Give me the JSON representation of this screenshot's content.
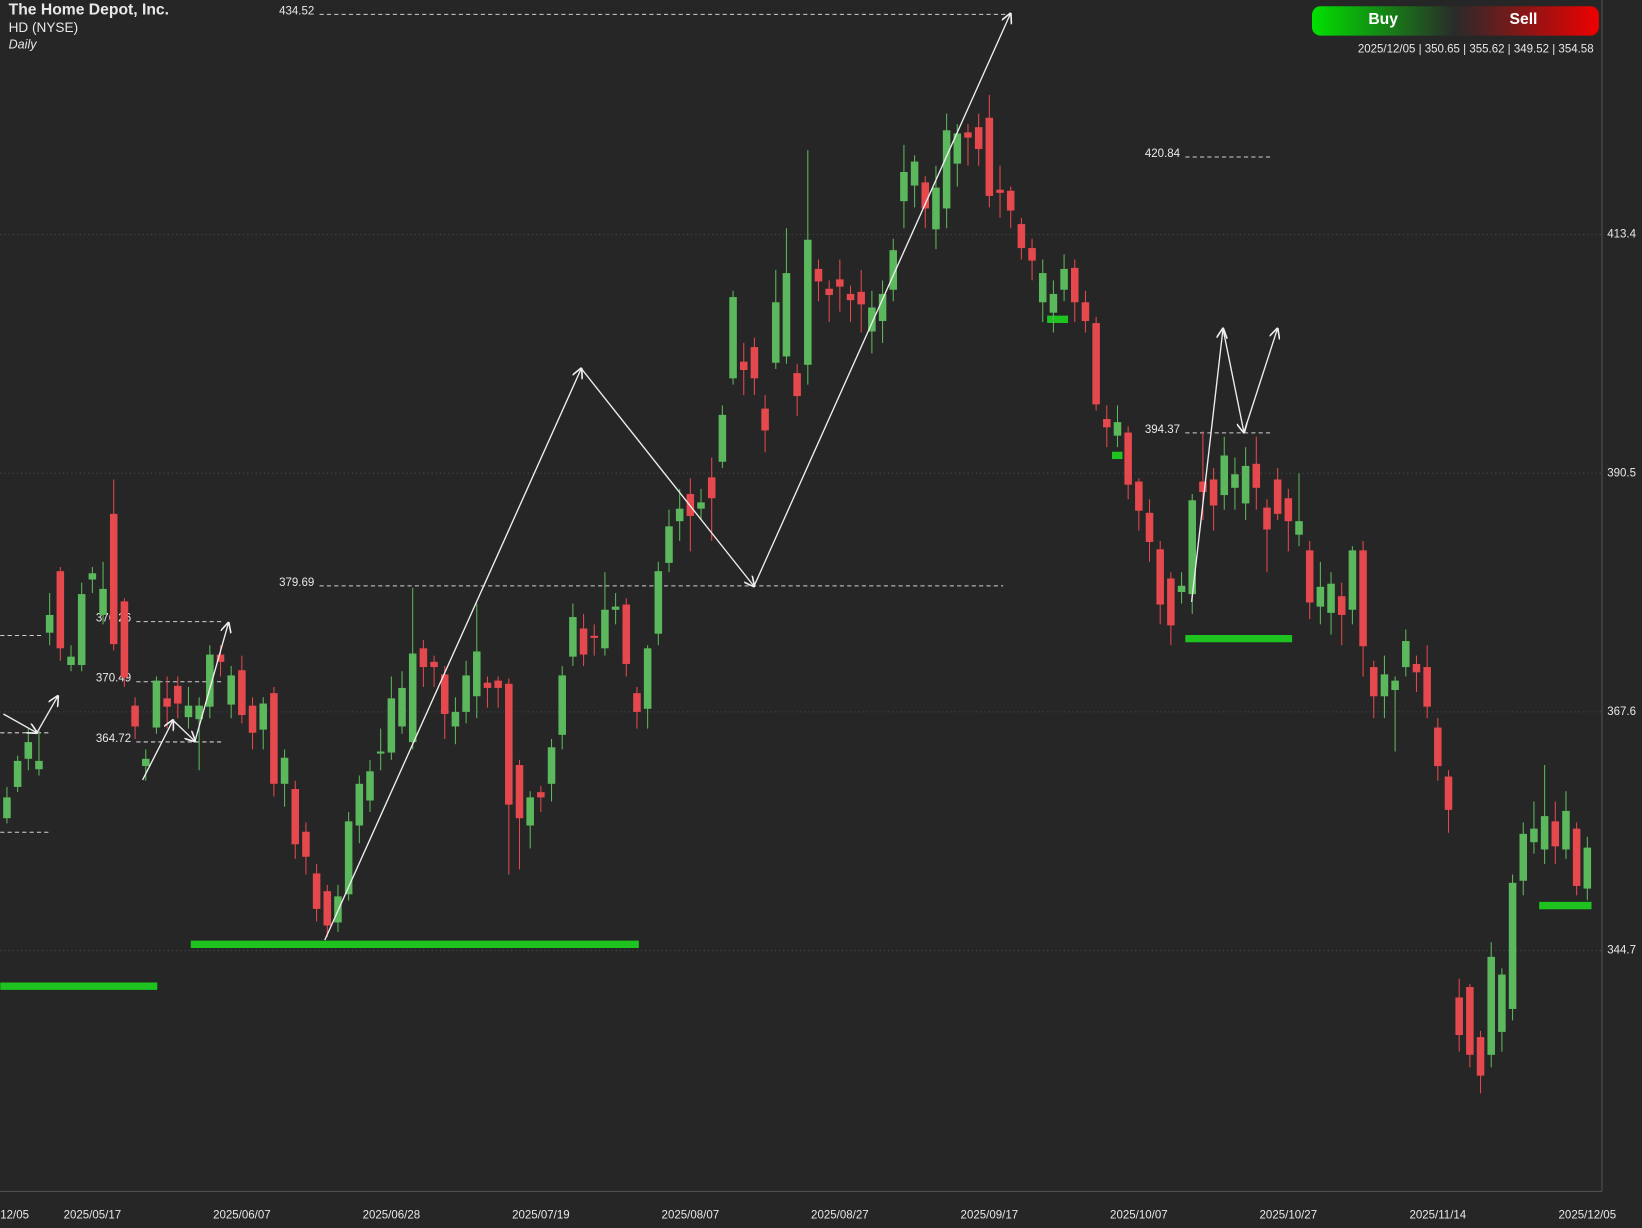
{
  "chart_data": {
    "type": "candlestick",
    "title": "The Home Depot, Inc.",
    "subtitle": "HD (NYSE)",
    "interval": "Daily",
    "buttons": [
      "Buy",
      "Sell"
    ],
    "ohlc_label": "2025/12/05 | 350.65 | 355.62 | 349.52 | 354.58",
    "up_color": "#5cb85c",
    "down_color": "#e5484d",
    "grid": true,
    "ylim": [
      321.6,
      435.9
    ],
    "yticks": [
      413.4,
      390.5,
      367.6,
      344.7
    ],
    "levels": [
      {
        "value": 434.52
      },
      {
        "value": 420.84
      },
      {
        "value": 394.37
      },
      {
        "value": 379.69
      },
      {
        "value": 376.26
      },
      {
        "value": 370.49
      },
      {
        "value": 364.72
      }
    ],
    "categories": [
      "12/05",
      null,
      null,
      null,
      null,
      null,
      null,
      null,
      "2025/05/17",
      null,
      null,
      null,
      null,
      null,
      null,
      null,
      null,
      null,
      null,
      null,
      null,
      null,
      "2025/06/07",
      null,
      null,
      null,
      null,
      null,
      null,
      null,
      null,
      null,
      null,
      null,
      null,
      null,
      "2025/06/28",
      null,
      null,
      null,
      null,
      null,
      null,
      null,
      null,
      null,
      null,
      null,
      null,
      null,
      "2025/07/19",
      null,
      null,
      null,
      null,
      null,
      null,
      null,
      null,
      null,
      null,
      null,
      null,
      null,
      "2025/08/07",
      null,
      null,
      null,
      null,
      null,
      null,
      null,
      null,
      null,
      null,
      null,
      null,
      null,
      "2025/08/27",
      null,
      null,
      null,
      null,
      null,
      null,
      null,
      null,
      null,
      null,
      null,
      null,
      null,
      "2025/09/17",
      null,
      null,
      null,
      null,
      null,
      null,
      null,
      null,
      null,
      null,
      null,
      null,
      null,
      "2025/10/07",
      null,
      null,
      null,
      null,
      null,
      null,
      null,
      null,
      null,
      null,
      null,
      null,
      null,
      "2025/10/27",
      null,
      null,
      null,
      null,
      null,
      null,
      null,
      null,
      null,
      null,
      null,
      null,
      null,
      "2025/11/14",
      null,
      null,
      null,
      null,
      null,
      null,
      null,
      null,
      null,
      null,
      null,
      null,
      null,
      "2025/12/05"
    ],
    "open": [
      357.4,
      360.4,
      363.1,
      362.1,
      375.2,
      381.1,
      372.1,
      372.1,
      380.3,
      376.9,
      386.6,
      378.2,
      368.2,
      362.4,
      366.1,
      368.9,
      370.1,
      367.1,
      366.9,
      368.1,
      373.1,
      368.3,
      371.6,
      368.2,
      365.9,
      369.4,
      360.7,
      360.2,
      356.1,
      352.1,
      350.4,
      347.4,
      350.1,
      356.7,
      359.1,
      363.6,
      363.7,
      366.2,
      364.7,
      373.7,
      372.4,
      371.2,
      366.2,
      367.6,
      369.1,
      370.4,
      370.6,
      370.3,
      362.5,
      356.7,
      359.9,
      360.7,
      365.4,
      372.9,
      375.6,
      374.9,
      373.7,
      377.4,
      377.9,
      369.4,
      367.9,
      375.1,
      381.9,
      385.9,
      388.5,
      387.1,
      390.1,
      391.6,
      399.6,
      401.2,
      402.6,
      396.7,
      401.1,
      401.7,
      400.1,
      400.9,
      410.1,
      408.2,
      409.1,
      407.7,
      407.9,
      404.1,
      405.1,
      408.1,
      416.6,
      418.1,
      418.4,
      413.9,
      415.9,
      420.2,
      423.2,
      423.7,
      424.6,
      417.7,
      417.6,
      414.4,
      412.1,
      406.9,
      405.9,
      408.1,
      410.2,
      406.9,
      404.9,
      395.7,
      394.1,
      394.4,
      389.7,
      386.7,
      383.2,
      380.4,
      379.1,
      378.9,
      389.7,
      389.9,
      388.4,
      389.1,
      387.6,
      391.4,
      387.2,
      389.9,
      388.1,
      384.6,
      383.1,
      377.7,
      377.1,
      378.7,
      377.4,
      383.1,
      371.9,
      369.1,
      369.7,
      371.9,
      372.2,
      371.9,
      366.1,
      361.4,
      340.2,
      341.2,
      336.4,
      334.7,
      336.9,
      339.1,
      351.4,
      355.1,
      354.4,
      357.1,
      354.4,
      356.4,
      350.65
    ],
    "high": [
      360.4,
      363.4,
      366,
      366,
      379,
      381.5,
      374,
      380,
      381.5,
      382,
      389.9,
      378.5,
      369,
      364,
      371,
      371,
      371,
      370,
      369,
      374,
      374,
      372,
      373,
      369,
      369,
      370,
      364,
      361,
      357,
      353,
      351,
      351,
      358,
      361.5,
      363,
      366,
      371,
      371.5,
      379.5,
      374.5,
      373,
      372,
      369,
      372.5,
      378,
      371,
      371,
      370.8,
      363,
      360,
      360.5,
      365,
      372,
      378,
      377,
      376,
      381,
      379,
      378.5,
      370,
      374,
      382,
      387,
      389,
      390,
      389,
      392,
      397,
      408,
      403,
      403.5,
      398,
      410,
      414,
      401,
      421.5,
      411,
      409,
      411,
      408.5,
      410,
      408,
      409,
      413,
      422,
      421,
      419,
      420,
      425,
      424,
      424,
      425,
      426.8,
      420,
      418,
      415,
      413,
      411,
      409,
      411.5,
      411,
      408,
      405.5,
      397,
      397,
      395,
      390,
      388,
      384,
      381,
      381,
      388.5,
      394.5,
      391,
      394,
      392,
      393,
      394,
      388,
      391,
      389,
      390.5,
      384,
      382,
      381,
      380,
      383.5,
      384,
      372.5,
      373,
      371,
      375.5,
      373,
      374,
      367,
      362,
      342,
      341.5,
      337,
      345.5,
      343,
      352,
      357,
      359,
      362.5,
      359,
      360,
      357,
      355.62
    ],
    "low": [
      356.9,
      359.9,
      362,
      361.5,
      374,
      372.5,
      371.5,
      371.5,
      379,
      376,
      373.5,
      370,
      365,
      361,
      365.5,
      366,
      367,
      366,
      362,
      367,
      371,
      367,
      366.5,
      364,
      364,
      359.5,
      358.5,
      353.5,
      352,
      347.5,
      346,
      346.5,
      349.5,
      355,
      358,
      362,
      363,
      365.5,
      364,
      370,
      370,
      365,
      364.5,
      366.5,
      367,
      368,
      368,
      352,
      352.5,
      354.5,
      358,
      359,
      364,
      372,
      372,
      373,
      373,
      376,
      371,
      366,
      366,
      374,
      381,
      384,
      383,
      386,
      384,
      391,
      399,
      398,
      398,
      392.5,
      400.5,
      401,
      396,
      399,
      407,
      405,
      406,
      405,
      404,
      402,
      403,
      407,
      414,
      416,
      414,
      412,
      414,
      418,
      420,
      420,
      416,
      415,
      414,
      411,
      409,
      405,
      404,
      407,
      405,
      404,
      396.5,
      393,
      393,
      388,
      385,
      382,
      376,
      374,
      378,
      377,
      386,
      385,
      387,
      387,
      386,
      387,
      381,
      386,
      383,
      383.5,
      376.5,
      376,
      375,
      374,
      376,
      371,
      367,
      367,
      363.8,
      371,
      369.5,
      367,
      361,
      356,
      335,
      333.5,
      331,
      333.5,
      335,
      338,
      350,
      354,
      353,
      353,
      353.5,
      350,
      349.52
    ],
    "close": [
      359.4,
      362.9,
      364.7,
      362.9,
      376.9,
      373.7,
      372.9,
      378.9,
      380.9,
      379.4,
      374.1,
      370.9,
      366.2,
      363.1,
      370.6,
      368.1,
      368.4,
      368.2,
      368.2,
      373.1,
      372.4,
      371.1,
      367.3,
      365.6,
      368.4,
      360.7,
      363.2,
      354.9,
      353.7,
      348.7,
      347.1,
      349.9,
      357.1,
      360.7,
      361.9,
      363.8,
      368.9,
      369.9,
      373.2,
      371.9,
      371.9,
      367.4,
      367.6,
      371.1,
      373.4,
      369.9,
      369.9,
      358.7,
      357.4,
      359.4,
      359.4,
      364.2,
      371.1,
      376.7,
      373.1,
      374.7,
      377.4,
      377.7,
      372.2,
      367.6,
      373.7,
      381.1,
      385.4,
      387.1,
      386.4,
      387.7,
      388.1,
      396.1,
      407.4,
      400.4,
      399.6,
      394.6,
      406.9,
      409.7,
      397.9,
      412.9,
      408.9,
      407.6,
      408.4,
      407.1,
      406.7,
      406.4,
      407.7,
      411.9,
      419.4,
      420.4,
      415.9,
      417.9,
      423.4,
      423.1,
      422.7,
      421.6,
      417.1,
      417.4,
      415.7,
      412.1,
      410.9,
      409.7,
      407.7,
      410.1,
      406.9,
      405.1,
      397.1,
      394.9,
      395.4,
      389.4,
      386.9,
      383.9,
      377.9,
      375.9,
      379.7,
      387.9,
      388.7,
      387.4,
      392.2,
      390.4,
      391.2,
      389.1,
      385.1,
      386.6,
      385.9,
      385.9,
      378.1,
      379.6,
      379.9,
      376.9,
      383.1,
      373.9,
      369.1,
      371.2,
      370.6,
      374.4,
      371.4,
      368.1,
      362.4,
      358.2,
      336.6,
      334.7,
      332.7,
      344.1,
      342.4,
      351.2,
      355.9,
      356.4,
      357.6,
      354.7,
      358.1,
      350.9,
      354.58
    ]
  }
}
